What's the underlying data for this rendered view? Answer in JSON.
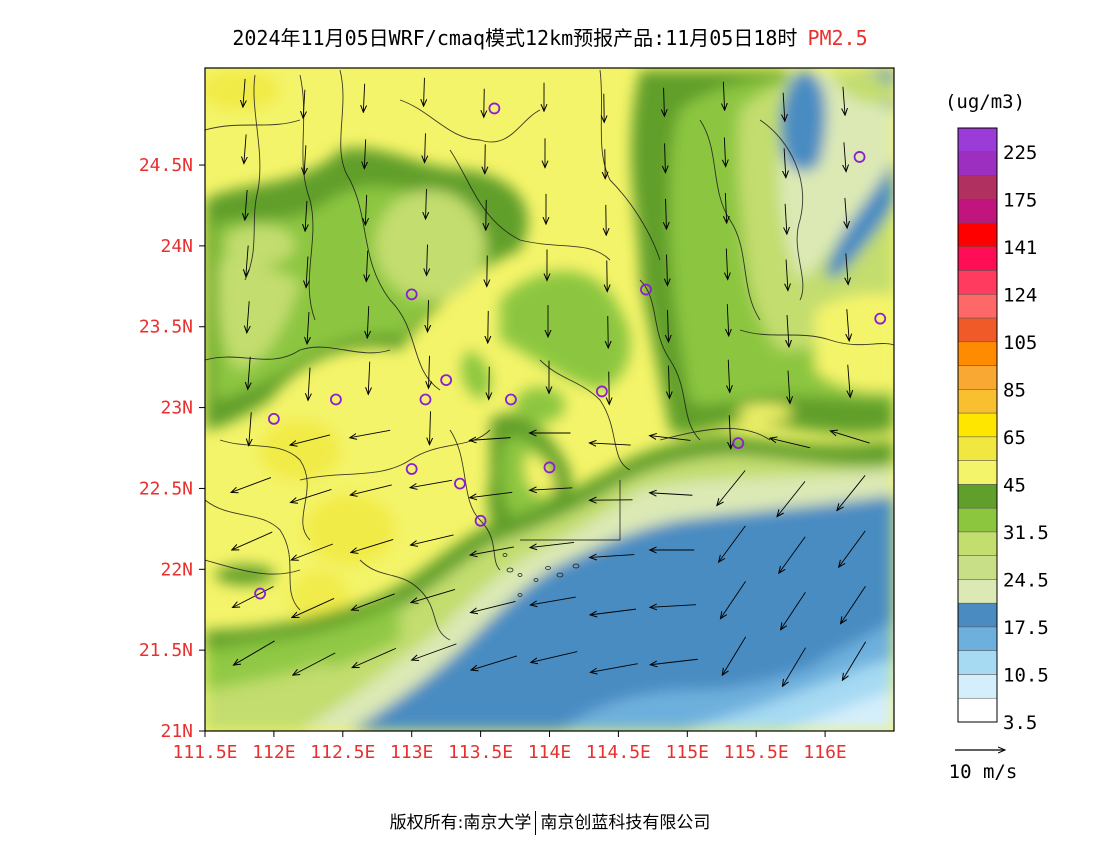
{
  "title": {
    "text": "2024年11月05日WRF/cmaq模式12km预报产品:11月05日18时",
    "pollutant": "PM2.5",
    "pollutant_color": "#e8312f"
  },
  "map": {
    "lat_ticks": [
      "24.5N",
      "24N",
      "23.5N",
      "23N",
      "22.5N",
      "22N",
      "21.5N",
      "21N"
    ],
    "lon_ticks": [
      "111.5E",
      "112E",
      "112.5E",
      "113E",
      "113.5E",
      "114E",
      "114.5E",
      "115E",
      "115.5E",
      "116E"
    ],
    "lat_range": [
      21.0,
      25.1
    ],
    "lon_range": [
      111.5,
      116.5
    ],
    "tick_label_color": "#e8312f",
    "stations": [
      [
        113.6,
        24.85
      ],
      [
        113.0,
        23.7
      ],
      [
        114.7,
        23.73
      ],
      [
        116.25,
        24.55
      ],
      [
        116.4,
        23.55
      ],
      [
        112.0,
        22.93
      ],
      [
        112.45,
        23.05
      ],
      [
        113.25,
        23.17
      ],
      [
        113.1,
        23.05
      ],
      [
        113.72,
        23.05
      ],
      [
        114.38,
        23.1
      ],
      [
        113.0,
        22.62
      ],
      [
        113.35,
        22.53
      ],
      [
        114.0,
        22.63
      ],
      [
        113.5,
        22.3
      ],
      [
        111.9,
        21.85
      ],
      [
        115.37,
        22.78
      ]
    ],
    "station_color": "#8b1fd0"
  },
  "wind": {
    "reference_label": "10 m/s"
  },
  "legend": {
    "unit": "(ug/m3)",
    "labels": [
      "225",
      "175",
      "141",
      "124",
      "105",
      "85",
      "65",
      "45",
      "31.5",
      "24.5",
      "17.5",
      "10.5",
      "3.5"
    ],
    "colors": [
      "#9b3bd8",
      "#9d2fc0",
      "#b03060",
      "#c0157d",
      "#ff0000",
      "#ff0d55",
      "#ff3c60",
      "#ff6868",
      "#f05a28",
      "#ff8c00",
      "#f9a833",
      "#f8c030",
      "#ffe600",
      "#f0e840",
      "#f4f46a",
      "#619f2c",
      "#8cc63f",
      "#c3dd6e",
      "#c8df88",
      "#dce9b5",
      "#4a8cc2",
      "#6eb0dd",
      "#a6daf3",
      "#d4eefb",
      "#ffffff"
    ]
  },
  "footer": {
    "left": "版权所有:南京大学",
    "right": "南京创蓝科技有限公司"
  }
}
